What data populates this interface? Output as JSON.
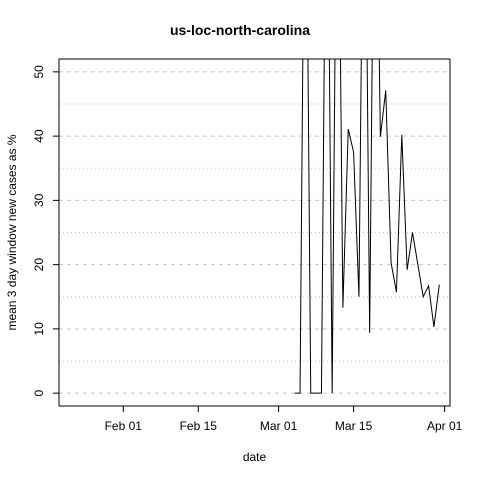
{
  "chart_data": {
    "type": "line",
    "title": "us-loc-north-carolina",
    "xlabel": "date",
    "ylabel": "mean  3  day window new cases as %",
    "xlim": [
      "2020-01-20",
      "2020-04-02"
    ],
    "ylim": [
      -2,
      52
    ],
    "x_ticks": [
      {
        "date": "2020-02-01",
        "label": "Feb 01"
      },
      {
        "date": "2020-02-15",
        "label": "Feb 15"
      },
      {
        "date": "2020-03-01",
        "label": "Mar 01"
      },
      {
        "date": "2020-03-15",
        "label": "Mar 15"
      },
      {
        "date": "2020-04-01",
        "label": "Apr 01"
      }
    ],
    "y_ticks": [
      0,
      10,
      20,
      30,
      40,
      50
    ],
    "y_tick_labels": [
      "0",
      "10",
      "20",
      "30",
      "40",
      "50"
    ],
    "grid": {
      "major_dashed": [
        0,
        10,
        20,
        30,
        40,
        50
      ],
      "minor_dotted": [
        5,
        15,
        25,
        35,
        45
      ]
    },
    "series": [
      {
        "color": "#000000",
        "points": [
          {
            "x": "2020-03-04",
            "y": 0
          },
          {
            "x": "2020-03-05",
            "y": 0
          },
          {
            "x": "2020-03-06",
            "y": 100
          },
          {
            "x": "2020-03-07",
            "y": 0
          },
          {
            "x": "2020-03-08",
            "y": 0
          },
          {
            "x": "2020-03-09",
            "y": 0
          },
          {
            "x": "2020-03-10",
            "y": 100
          },
          {
            "x": "2020-03-11",
            "y": 0
          },
          {
            "x": "2020-03-12",
            "y": 100
          },
          {
            "x": "2020-03-13",
            "y": 13.3
          },
          {
            "x": "2020-03-14",
            "y": 41.1
          },
          {
            "x": "2020-03-15",
            "y": 37.5
          },
          {
            "x": "2020-03-16",
            "y": 15
          },
          {
            "x": "2020-03-17",
            "y": 100
          },
          {
            "x": "2020-03-18",
            "y": 9.4
          },
          {
            "x": "2020-03-19",
            "y": 100
          },
          {
            "x": "2020-03-20",
            "y": 39.9
          },
          {
            "x": "2020-03-21",
            "y": 47.1
          },
          {
            "x": "2020-03-22",
            "y": 20.3
          },
          {
            "x": "2020-03-23",
            "y": 15.7
          },
          {
            "x": "2020-03-24",
            "y": 40.2
          },
          {
            "x": "2020-03-25",
            "y": 19.2
          },
          {
            "x": "2020-03-26",
            "y": 25
          },
          {
            "x": "2020-03-27",
            "y": 20
          },
          {
            "x": "2020-03-28",
            "y": 15
          },
          {
            "x": "2020-03-29",
            "y": 16.7
          },
          {
            "x": "2020-03-30",
            "y": 10.3
          },
          {
            "x": "2020-03-31",
            "y": 16.9
          }
        ]
      }
    ]
  }
}
